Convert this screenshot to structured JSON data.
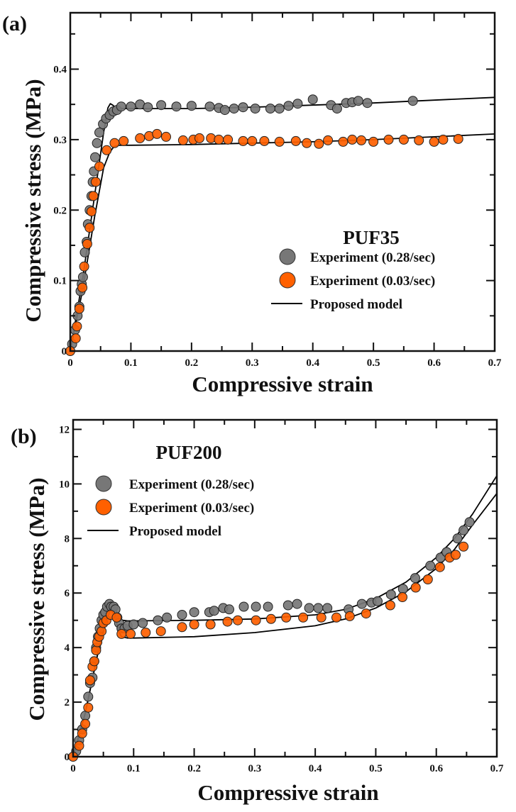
{
  "chart_data": [
    {
      "panel_label": "(a)",
      "type": "scatter",
      "title": "PUF35",
      "xlabel": "Compressive strain",
      "ylabel": "Compressive stress (MPa)",
      "xlim": [
        0,
        0.7
      ],
      "ylim": [
        0,
        0.48
      ],
      "xticks": [
        0,
        0.1,
        0.2,
        0.3,
        0.4,
        0.5,
        0.6,
        0.7
      ],
      "xtick_labels": [
        "0",
        "0.1",
        "0.2",
        "0.3",
        "0.4",
        "0.5",
        "0.6",
        "0.7"
      ],
      "yticks": [
        0,
        0.1,
        0.2,
        0.3,
        0.4
      ],
      "ytick_labels": [
        "0",
        "0.1",
        "0.2",
        "0.3",
        "0.4"
      ],
      "grid": false,
      "legend_position": "lower-right",
      "series": [
        {
          "name": "Experiment (0.28/sec)",
          "kind": "markers",
          "color": "#777777",
          "x": [
            0.003,
            0.008,
            0.012,
            0.015,
            0.017,
            0.019,
            0.021,
            0.024,
            0.027,
            0.029,
            0.032,
            0.035,
            0.037,
            0.039,
            0.041,
            0.044,
            0.048,
            0.054,
            0.059,
            0.065,
            0.071,
            0.077,
            0.084,
            0.1,
            0.115,
            0.128,
            0.15,
            0.175,
            0.2,
            0.23,
            0.245,
            0.255,
            0.27,
            0.285,
            0.305,
            0.33,
            0.345,
            0.36,
            0.375,
            0.4,
            0.43,
            0.44,
            0.455,
            0.465,
            0.475,
            0.49,
            0.565
          ],
          "y": [
            0.01,
            0.03,
            0.05,
            0.063,
            0.085,
            0.095,
            0.105,
            0.14,
            0.155,
            0.18,
            0.2,
            0.22,
            0.24,
            0.255,
            0.275,
            0.295,
            0.31,
            0.322,
            0.33,
            0.335,
            0.34,
            0.342,
            0.347,
            0.347,
            0.35,
            0.346,
            0.349,
            0.347,
            0.348,
            0.347,
            0.345,
            0.342,
            0.344,
            0.346,
            0.344,
            0.344,
            0.344,
            0.348,
            0.351,
            0.357,
            0.349,
            0.344,
            0.352,
            0.353,
            0.355,
            0.352,
            0.355
          ]
        },
        {
          "name": "Experiment (0.03/sec)",
          "kind": "markers",
          "color": "#ff6000",
          "x": [
            0,
            0.009,
            0.011,
            0.015,
            0.02,
            0.023,
            0.028,
            0.032,
            0.035,
            0.038,
            0.042,
            0.048,
            0.06,
            0.073,
            0.088,
            0.115,
            0.13,
            0.143,
            0.158,
            0.186,
            0.203,
            0.213,
            0.232,
            0.245,
            0.26,
            0.285,
            0.3,
            0.32,
            0.345,
            0.372,
            0.39,
            0.41,
            0.425,
            0.45,
            0.465,
            0.48,
            0.5,
            0.525,
            0.55,
            0.575,
            0.6,
            0.615,
            0.64
          ],
          "y": [
            0,
            0.018,
            0.035,
            0.06,
            0.09,
            0.12,
            0.152,
            0.175,
            0.198,
            0.22,
            0.24,
            0.262,
            0.285,
            0.295,
            0.298,
            0.302,
            0.305,
            0.308,
            0.304,
            0.299,
            0.3,
            0.302,
            0.302,
            0.3,
            0.3,
            0.298,
            0.298,
            0.298,
            0.297,
            0.298,
            0.295,
            0.294,
            0.299,
            0.297,
            0.3,
            0.299,
            0.297,
            0.3,
            0.3,
            0.299,
            0.297,
            0.3,
            0.301
          ]
        },
        {
          "name": "Proposed model (0.28/sec)",
          "kind": "line",
          "color": "#000000",
          "x": [
            0,
            0.02,
            0.04,
            0.055,
            0.062,
            0.066,
            0.07,
            0.075,
            0.082,
            0.09,
            0.1,
            0.2,
            0.3,
            0.4,
            0.5,
            0.6,
            0.7
          ],
          "y": [
            0,
            0.1,
            0.22,
            0.31,
            0.345,
            0.351,
            0.349,
            0.345,
            0.344,
            0.344,
            0.344,
            0.344,
            0.346,
            0.349,
            0.352,
            0.356,
            0.36
          ]
        },
        {
          "name": "Proposed model (0.03/sec)",
          "kind": "line",
          "color": "#000000",
          "x": [
            0,
            0.02,
            0.04,
            0.055,
            0.065,
            0.072,
            0.08,
            0.1,
            0.2,
            0.3,
            0.4,
            0.5,
            0.6,
            0.7
          ],
          "y": [
            0,
            0.085,
            0.19,
            0.26,
            0.282,
            0.29,
            0.292,
            0.292,
            0.293,
            0.295,
            0.297,
            0.3,
            0.304,
            0.308
          ]
        }
      ],
      "legend": [
        {
          "label": "Experiment (0.28/sec)",
          "symbol": "circle",
          "color": "#777777"
        },
        {
          "label": "Experiment (0.03/sec)",
          "symbol": "circle",
          "color": "#ff6000"
        },
        {
          "label": "Proposed model",
          "symbol": "line",
          "color": "#000000"
        }
      ]
    },
    {
      "panel_label": "(b)",
      "type": "scatter",
      "title": "PUF200",
      "xlabel": "Compressive strain",
      "ylabel": "Compressive stress (MPa)",
      "xlim": [
        0,
        0.7
      ],
      "ylim": [
        0,
        12.35
      ],
      "xticks": [
        0,
        0.1,
        0.2,
        0.3,
        0.4,
        0.5,
        0.6,
        0.7
      ],
      "xtick_labels": [
        "0",
        "0.1",
        "0.2",
        "0.3",
        "0.4",
        "0.5",
        "0.6",
        "0.7"
      ],
      "yticks": [
        0,
        2,
        4,
        6,
        8,
        10,
        12
      ],
      "ytick_labels": [
        "0",
        "2",
        "4",
        "6",
        "8",
        "10",
        "12"
      ],
      "grid": false,
      "legend_position": "upper-left",
      "series": [
        {
          "name": "Experiment (0.28/sec)",
          "kind": "markers",
          "color": "#777777",
          "x": [
            0.005,
            0.01,
            0.015,
            0.02,
            0.025,
            0.028,
            0.032,
            0.035,
            0.038,
            0.041,
            0.044,
            0.047,
            0.05,
            0.053,
            0.056,
            0.06,
            0.063,
            0.067,
            0.07,
            0.073,
            0.076,
            0.08,
            0.085,
            0.09,
            0.1,
            0.115,
            0.14,
            0.155,
            0.18,
            0.2,
            0.225,
            0.233,
            0.248,
            0.258,
            0.282,
            0.302,
            0.322,
            0.355,
            0.37,
            0.39,
            0.405,
            0.42,
            0.455,
            0.477,
            0.493,
            0.503,
            0.525,
            0.545,
            0.565,
            0.59,
            0.607,
            0.617,
            0.635,
            0.645,
            0.655
          ],
          "y": [
            0.2,
            0.6,
            1.0,
            1.5,
            2.2,
            2.7,
            2.9,
            3.5,
            4.0,
            4.4,
            4.7,
            5.0,
            5.2,
            5.3,
            5.5,
            5.6,
            5.5,
            5.5,
            5.4,
            5.1,
            4.9,
            4.7,
            4.7,
            4.8,
            4.85,
            4.9,
            5.0,
            5.1,
            5.2,
            5.3,
            5.3,
            5.35,
            5.45,
            5.4,
            5.5,
            5.5,
            5.5,
            5.55,
            5.6,
            5.45,
            5.45,
            5.45,
            5.4,
            5.6,
            5.65,
            5.7,
            5.95,
            6.15,
            6.55,
            7.0,
            7.3,
            7.5,
            8.0,
            8.3,
            8.6
          ]
        },
        {
          "name": "Experiment (0.03/sec)",
          "kind": "markers",
          "color": "#ff6000",
          "x": [
            0,
            0.01,
            0.015,
            0.02,
            0.025,
            0.028,
            0.032,
            0.035,
            0.038,
            0.04,
            0.043,
            0.047,
            0.05,
            0.055,
            0.062,
            0.072,
            0.08,
            0.095,
            0.12,
            0.145,
            0.18,
            0.2,
            0.227,
            0.255,
            0.272,
            0.302,
            0.327,
            0.352,
            0.38,
            0.41,
            0.435,
            0.457,
            0.484,
            0.524,
            0.544,
            0.566,
            0.586,
            0.606,
            0.622,
            0.632,
            0.645
          ],
          "y": [
            0,
            0.4,
            0.85,
            1.2,
            1.8,
            2.8,
            3.3,
            3.5,
            3.9,
            4.2,
            4.4,
            4.6,
            4.9,
            5.0,
            5.2,
            5.1,
            4.5,
            4.5,
            4.55,
            4.6,
            4.75,
            4.85,
            4.85,
            4.95,
            5.0,
            5.0,
            5.05,
            5.1,
            5.1,
            5.1,
            5.1,
            5.15,
            5.25,
            5.55,
            5.85,
            6.2,
            6.5,
            6.95,
            7.3,
            7.4,
            7.7
          ]
        },
        {
          "name": "Proposed model (0.28/sec)",
          "kind": "line",
          "color": "#000000",
          "x": [
            0,
            0.02,
            0.04,
            0.055,
            0.062,
            0.066,
            0.07,
            0.075,
            0.082,
            0.09,
            0.1,
            0.2,
            0.3,
            0.4,
            0.45,
            0.5,
            0.55,
            0.6,
            0.63,
            0.66,
            0.7
          ],
          "y": [
            0,
            1.6,
            3.7,
            5.1,
            5.5,
            5.55,
            5.4,
            5.1,
            5.0,
            4.98,
            4.98,
            5.0,
            5.05,
            5.2,
            5.4,
            5.8,
            6.4,
            7.3,
            8.0,
            8.9,
            10.3
          ]
        },
        {
          "name": "Proposed model (0.03/sec)",
          "kind": "line",
          "color": "#000000",
          "x": [
            0,
            0.02,
            0.04,
            0.055,
            0.062,
            0.066,
            0.07,
            0.075,
            0.08,
            0.09,
            0.1,
            0.2,
            0.3,
            0.4,
            0.45,
            0.5,
            0.55,
            0.6,
            0.63,
            0.66,
            0.7
          ],
          "y": [
            0,
            1.6,
            3.7,
            5.0,
            5.4,
            5.5,
            5.1,
            4.6,
            4.4,
            4.35,
            4.35,
            4.4,
            4.55,
            4.8,
            5.05,
            5.45,
            6.05,
            6.9,
            7.6,
            8.5,
            9.65
          ]
        }
      ],
      "legend": [
        {
          "label": "Experiment (0.28/sec)",
          "symbol": "circle",
          "color": "#777777"
        },
        {
          "label": "Experiment (0.03/sec)",
          "symbol": "circle",
          "color": "#ff6000"
        },
        {
          "label": "Proposed model",
          "symbol": "line",
          "color": "#000000"
        }
      ]
    }
  ]
}
